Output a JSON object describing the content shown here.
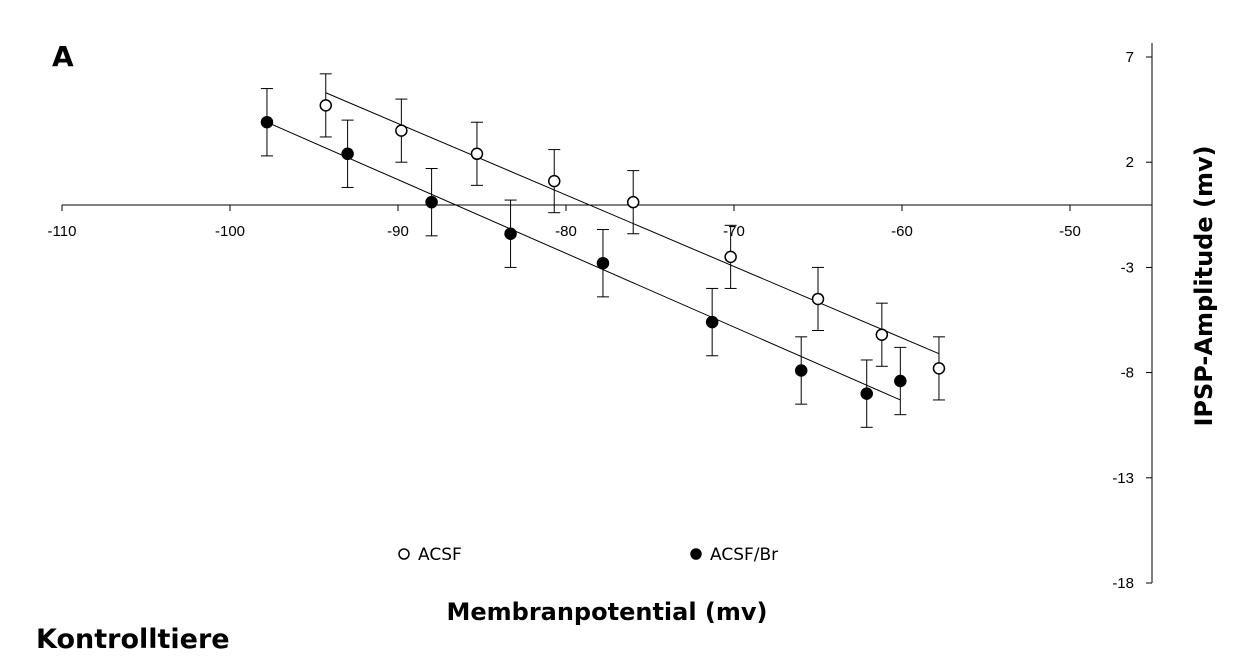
{
  "panel_label": "A",
  "figure_caption": "Kontrolltiere",
  "chart_data": {
    "type": "scatter",
    "xlabel": "Membranpotential (mv)",
    "ylabel": "IPSP-Amplitude (mv)",
    "xlim": [
      -110,
      -50
    ],
    "ylim": [
      -18,
      7
    ],
    "xticks": [
      -110,
      -100,
      -90,
      -80,
      -70,
      -60,
      -50
    ],
    "yticks": [
      7,
      2,
      -3,
      -8,
      -13,
      -18
    ],
    "grid": false,
    "legend_position": "bottom",
    "series": [
      {
        "name": "ACSF",
        "marker": "open-circle",
        "color": "#000000",
        "x": [
          -94.3,
          -89.8,
          -85.3,
          -80.7,
          -76.0,
          -70.2,
          -65.0,
          -61.2,
          -57.8
        ],
        "y": [
          4.7,
          3.5,
          2.4,
          1.1,
          0.1,
          -2.5,
          -4.5,
          -6.2,
          -7.8
        ],
        "yerr": [
          1.5,
          1.5,
          1.5,
          1.5,
          1.5,
          1.5,
          1.5,
          1.5,
          1.5
        ],
        "fit": {
          "x": [
            -94.3,
            -57.8
          ],
          "y": [
            5.3,
            -7.1
          ]
        }
      },
      {
        "name": "ACSF/Br",
        "marker": "filled-circle",
        "color": "#000000",
        "x": [
          -97.8,
          -93.0,
          -88.0,
          -83.3,
          -77.8,
          -71.3,
          -66.0,
          -62.1,
          -60.1
        ],
        "y": [
          3.9,
          2.4,
          0.1,
          -1.4,
          -2.8,
          -5.6,
          -7.9,
          -9.0,
          -8.4
        ],
        "yerr": [
          1.6,
          1.6,
          1.6,
          1.6,
          1.6,
          1.6,
          1.6,
          1.6,
          1.6
        ],
        "fit": {
          "x": [
            -97.8,
            -60.1
          ],
          "y": [
            3.9,
            -9.3
          ]
        }
      }
    ]
  }
}
